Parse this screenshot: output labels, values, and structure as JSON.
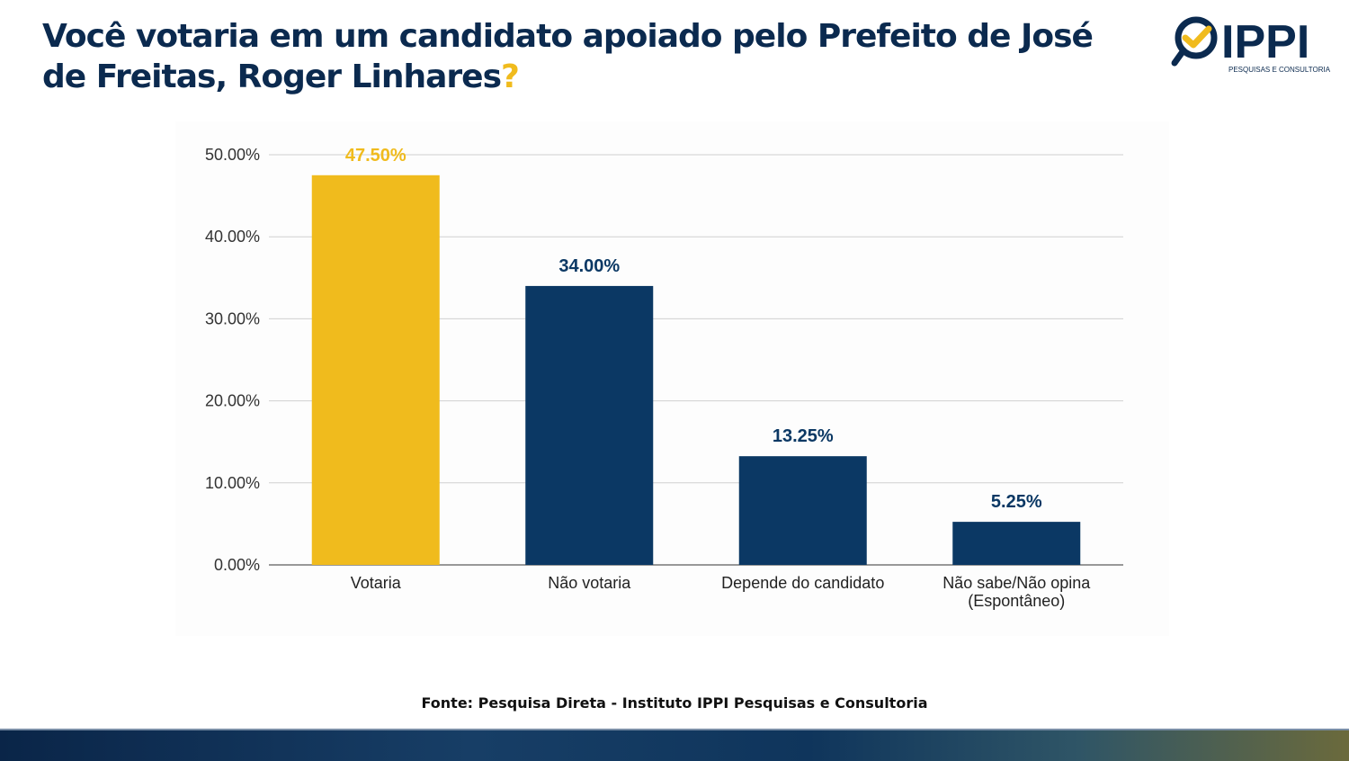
{
  "title": {
    "text": "Você votaria em um candidato apoiado pelo Prefeito de José de Freitas, Roger Linhares",
    "mark": "?"
  },
  "logo": {
    "name": "IPPI",
    "tagline": "PESQUISAS E CONSULTORIA"
  },
  "source": "Fonte: Pesquisa Direta - Instituto IPPI Pesquisas e Consultoria",
  "colors": {
    "highlight": "#f0bb1d",
    "primary": "#0b3864"
  },
  "chart_data": {
    "type": "bar",
    "categories": [
      "Votaria",
      "Não votaria",
      "Depende do candidato",
      "Não sabe/Não opina\n(Espontâneo)"
    ],
    "values": [
      47.5,
      34.0,
      13.25,
      5.25
    ],
    "data_labels": [
      "47.50%",
      "34.00%",
      "13.25%",
      "5.25%"
    ],
    "bar_colors": [
      "#f0bb1d",
      "#0b3864",
      "#0b3864",
      "#0b3864"
    ],
    "yticks": [
      "0.00%",
      "10.00%",
      "20.00%",
      "30.00%",
      "40.00%",
      "50.00%"
    ],
    "ylim": [
      0,
      50
    ],
    "grid": true,
    "xlabel": "",
    "ylabel": ""
  }
}
